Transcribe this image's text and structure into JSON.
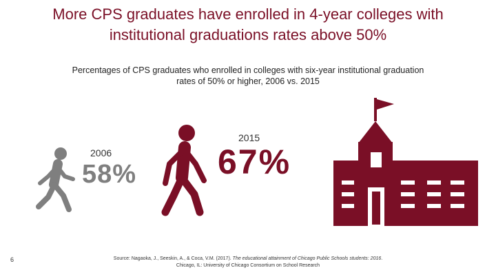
{
  "title": {
    "line1": "More CPS graduates have enrolled in 4-year colleges with",
    "line2": "institutional graduations rates above 50%"
  },
  "subtitle": {
    "line1": "Percentages of CPS graduates who enrolled in colleges with six-year institutional graduation",
    "line2": "rates of 50% or higher, 2006 vs. 2015"
  },
  "stats": [
    {
      "year": "2006",
      "value": "58%"
    },
    {
      "year": "2015",
      "value": "67%"
    }
  ],
  "footer": {
    "page_number": "6",
    "source_pre": "Source: Nagaoka, J., Seeskin, A., & Coca, V.M. (2017). ",
    "source_title": "The educational attainment of Chicago Public Schools students: 2016",
    "source_post": ".",
    "source_line2": "Chicago, IL: University of Chicago Consortium on School Research"
  },
  "colors": {
    "maroon": "#7a0f26",
    "gray": "#7f7f7f"
  },
  "icons": [
    "walking-person-icon",
    "walking-person-icon",
    "school-building-icon"
  ]
}
